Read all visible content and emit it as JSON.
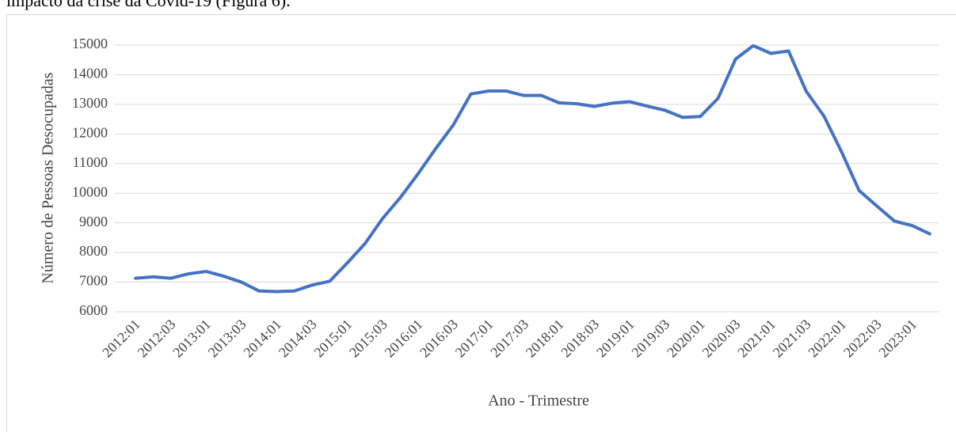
{
  "document_text": "impacto da crise da Covid-19 (Figura 6).",
  "chart_data": {
    "type": "line",
    "y_label": "Número de Pessoas Desocupadas",
    "x_label": "Ano - Trimestre",
    "categories": [
      "2012:01",
      null,
      "2012:03",
      null,
      "2013:01",
      null,
      "2013:03",
      null,
      "2014:01",
      null,
      "2014:03",
      null,
      "2015:01",
      null,
      "2015:03",
      null,
      "2016:01",
      null,
      "2016:03",
      null,
      "2017:01",
      null,
      "2017:03",
      null,
      "2018:01",
      null,
      "2018:03",
      null,
      "2019:01",
      null,
      "2019:03",
      null,
      "2020:01",
      null,
      "2020:03",
      null,
      "2021:01",
      null,
      "2021:03",
      null,
      "2022:01",
      null,
      "2022:03",
      null,
      "2023:01",
      null
    ],
    "values": [
      7130,
      7180,
      7130,
      7280,
      7360,
      7200,
      7000,
      6700,
      6680,
      6700,
      6900,
      7030,
      7650,
      8300,
      9150,
      9850,
      10650,
      11500,
      12300,
      13350,
      13450,
      13450,
      13300,
      13300,
      13050,
      13020,
      12930,
      13040,
      13090,
      12940,
      12800,
      12560,
      12590,
      13200,
      14530,
      14980,
      14720,
      14800,
      13440,
      12610,
      11400,
      10090,
      9570,
      9060,
      8910,
      8630
    ],
    "color": "#4472c4",
    "ylim": [
      6000,
      15000
    ],
    "yticks": [
      6000,
      7000,
      8000,
      9000,
      10000,
      11000,
      12000,
      13000,
      14000,
      15000
    ],
    "grid": true
  }
}
